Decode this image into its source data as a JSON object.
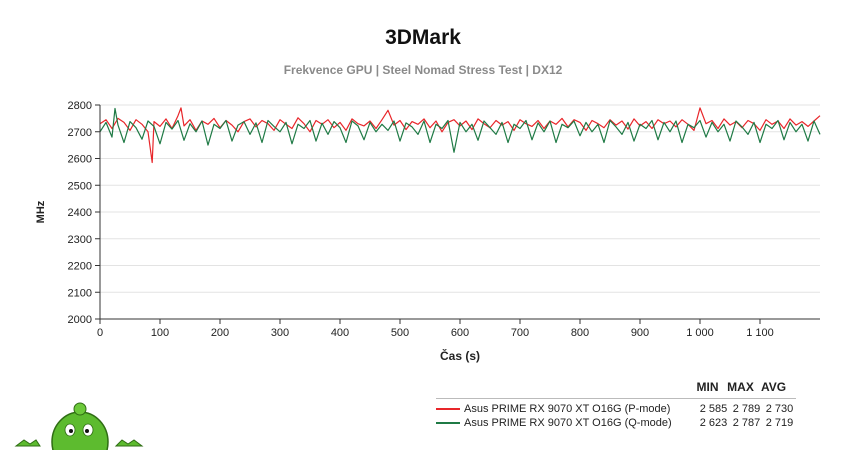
{
  "chart_data": {
    "type": "line",
    "title": "3DMark",
    "subtitle": "Frekvence GPU | Steel Nomad Stress Test | DX12",
    "xlabel": "Čas (s)",
    "ylabel": "MHz",
    "xlim": [
      0,
      1200
    ],
    "ylim": [
      2000,
      2800
    ],
    "xticks": [
      0,
      100,
      200,
      300,
      400,
      500,
      600,
      700,
      800,
      900,
      1000,
      1100
    ],
    "xtick_labels": [
      "0",
      "100",
      "200",
      "300",
      "400",
      "500",
      "600",
      "700",
      "800",
      "900",
      "1 000",
      "1 100"
    ],
    "yticks": [
      2000,
      2100,
      2200,
      2300,
      2400,
      2500,
      2600,
      2700,
      2800
    ],
    "grid": true,
    "legend_position": "bottom-right",
    "stats_headers": [
      "MIN",
      "MAX",
      "AVG"
    ],
    "series": [
      {
        "name": "Asus PRIME RX 9070 XT O16G (P-mode)",
        "color": "#e8262a",
        "min": "2 585",
        "max": "2 789",
        "avg": "2 730",
        "x": [
          0,
          10,
          20,
          30,
          40,
          50,
          60,
          70,
          80,
          87,
          90,
          100,
          110,
          120,
          130,
          135,
          140,
          150,
          160,
          170,
          180,
          190,
          200,
          210,
          220,
          230,
          240,
          250,
          260,
          270,
          280,
          290,
          300,
          310,
          320,
          330,
          340,
          350,
          360,
          370,
          380,
          390,
          400,
          410,
          420,
          430,
          440,
          450,
          460,
          470,
          480,
          490,
          500,
          510,
          520,
          530,
          540,
          550,
          560,
          570,
          580,
          590,
          600,
          610,
          620,
          630,
          640,
          650,
          660,
          670,
          680,
          690,
          700,
          710,
          720,
          730,
          740,
          750,
          760,
          770,
          780,
          790,
          800,
          810,
          820,
          830,
          840,
          850,
          860,
          870,
          880,
          890,
          900,
          910,
          920,
          930,
          940,
          950,
          960,
          970,
          980,
          990,
          1000,
          1010,
          1020,
          1030,
          1040,
          1050,
          1060,
          1070,
          1080,
          1090,
          1100,
          1110,
          1120,
          1130,
          1140,
          1150,
          1160,
          1170,
          1180,
          1190,
          1200
        ],
        "y": [
          2730,
          2745,
          2712,
          2750,
          2735,
          2705,
          2745,
          2728,
          2700,
          2585,
          2738,
          2720,
          2748,
          2712,
          2760,
          2789,
          2722,
          2745,
          2705,
          2740,
          2728,
          2750,
          2715,
          2742,
          2725,
          2700,
          2738,
          2748,
          2718,
          2742,
          2730,
          2705,
          2745,
          2728,
          2712,
          2752,
          2730,
          2700,
          2742,
          2728,
          2745,
          2715,
          2735,
          2705,
          2748,
          2730,
          2722,
          2740,
          2712,
          2745,
          2780,
          2725,
          2742,
          2708,
          2738,
          2728,
          2748,
          2715,
          2740,
          2700,
          2735,
          2745,
          2722,
          2740,
          2708,
          2748,
          2730,
          2715,
          2742,
          2725,
          2738,
          2705,
          2745,
          2730,
          2720,
          2742,
          2712,
          2740,
          2728,
          2750,
          2718,
          2745,
          2735,
          2705,
          2742,
          2730,
          2715,
          2745,
          2725,
          2740,
          2710,
          2748,
          2722,
          2738,
          2712,
          2745,
          2730,
          2740,
          2718,
          2745,
          2728,
          2705,
          2789,
          2730,
          2742,
          2712,
          2748,
          2725,
          2738,
          2715,
          2742,
          2730,
          2705,
          2745,
          2728,
          2740,
          2712,
          2748,
          2725,
          2738,
          2720,
          2740,
          2760
        ]
      },
      {
        "name": "Asus PRIME RX 9070 XT O16G (Q-mode)",
        "color": "#1f7a45",
        "min": "2 623",
        "max": "2 787",
        "avg": "2 719",
        "x": [
          0,
          10,
          20,
          25,
          30,
          40,
          50,
          60,
          70,
          80,
          90,
          100,
          110,
          120,
          130,
          140,
          150,
          160,
          170,
          180,
          190,
          200,
          210,
          220,
          230,
          240,
          250,
          260,
          270,
          280,
          290,
          300,
          310,
          320,
          330,
          340,
          350,
          360,
          370,
          380,
          390,
          400,
          410,
          420,
          430,
          440,
          450,
          460,
          470,
          480,
          490,
          500,
          510,
          520,
          530,
          540,
          550,
          560,
          570,
          580,
          590,
          600,
          610,
          620,
          630,
          640,
          650,
          660,
          670,
          680,
          690,
          700,
          710,
          720,
          730,
          740,
          750,
          760,
          770,
          780,
          790,
          800,
          810,
          820,
          830,
          840,
          850,
          860,
          870,
          880,
          890,
          900,
          910,
          920,
          930,
          940,
          950,
          960,
          970,
          980,
          990,
          1000,
          1010,
          1020,
          1030,
          1040,
          1050,
          1060,
          1070,
          1080,
          1090,
          1100,
          1110,
          1120,
          1130,
          1140,
          1150,
          1160,
          1170,
          1180,
          1190,
          1200
        ],
        "y": [
          2700,
          2735,
          2680,
          2787,
          2725,
          2660,
          2738,
          2715,
          2672,
          2740,
          2720,
          2655,
          2735,
          2710,
          2742,
          2668,
          2730,
          2700,
          2740,
          2650,
          2728,
          2712,
          2742,
          2665,
          2725,
          2738,
          2690,
          2733,
          2660,
          2742,
          2720,
          2700,
          2735,
          2655,
          2728,
          2712,
          2742,
          2665,
          2732,
          2690,
          2738,
          2715,
          2660,
          2740,
          2722,
          2670,
          2735,
          2700,
          2728,
          2705,
          2740,
          2665,
          2733,
          2718,
          2690,
          2740,
          2660,
          2728,
          2712,
          2742,
          2623,
          2735,
          2700,
          2728,
          2668,
          2740,
          2715,
          2690,
          2735,
          2660,
          2728,
          2712,
          2742,
          2670,
          2733,
          2700,
          2740,
          2660,
          2728,
          2715,
          2740,
          2685,
          2735,
          2700,
          2728,
          2660,
          2742,
          2718,
          2690,
          2735,
          2665,
          2728,
          2712,
          2742,
          2670,
          2735,
          2700,
          2740,
          2660,
          2728,
          2715,
          2742,
          2680,
          2735,
          2700,
          2728,
          2665,
          2740,
          2718,
          2690,
          2735,
          2660,
          2728,
          2712,
          2742,
          2670,
          2735,
          2700,
          2728,
          2665,
          2740,
          2690
        ]
      }
    ]
  }
}
